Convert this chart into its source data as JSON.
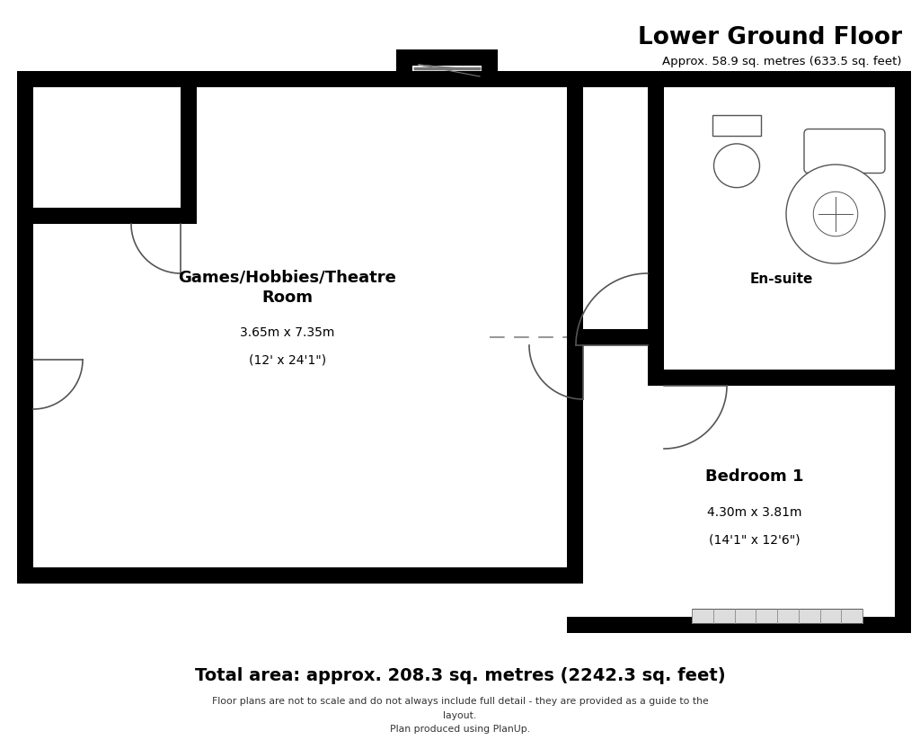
{
  "title": "Lower Ground Floor",
  "subtitle": "Approx. 58.9 sq. metres (633.5 sq. feet)",
  "total_area": "Total area: approx. 208.3 sq. metres (2242.3 sq. feet)",
  "disclaimer": "Floor plans are not to scale and do not always include full detail - they are provided as a guide to the\nlayout.\nPlan produced using PlanUp.",
  "wall_color": "#000000",
  "bg_color": "#ffffff",
  "door_color": "#555555",
  "fixture_color": "#555555",
  "dashed_color": "#999999",
  "rooms": {
    "games": {
      "label": "Games/Hobbies/Theatre\nRoom",
      "dim1": "3.65m x 7.35m",
      "dim2": "(12' x 24'1\")"
    },
    "ensuite": {
      "label": "En-suite"
    },
    "bedroom": {
      "label": "Bedroom 1",
      "dim1": "4.30m x 3.81m",
      "dim2": "(14'1\" x 12'6\")"
    }
  }
}
